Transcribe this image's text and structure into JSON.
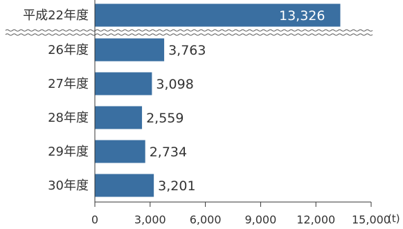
{
  "chart_data": {
    "type": "bar",
    "orientation": "horizontal",
    "axis_break": true,
    "categories": [
      "平成22年度",
      "26年度",
      "27年度",
      "28年度",
      "29年度",
      "30年度"
    ],
    "values": [
      13326,
      3763,
      3098,
      2559,
      2734,
      3201
    ],
    "value_labels": [
      "13,326",
      "3,763",
      "3,098",
      "2,559",
      "2,734",
      "3,201"
    ],
    "xlim": [
      0,
      15000
    ],
    "x_ticks": [
      0,
      3000,
      6000,
      9000,
      12000,
      15000
    ],
    "x_tick_labels": [
      "0",
      "3,000",
      "6,000",
      "9,000",
      "12,000",
      "15,000"
    ],
    "unit": "(t)",
    "grid": false,
    "colors": {
      "bar": "#3a6fa1",
      "axis": "#333333",
      "break_line": "#555555"
    }
  }
}
